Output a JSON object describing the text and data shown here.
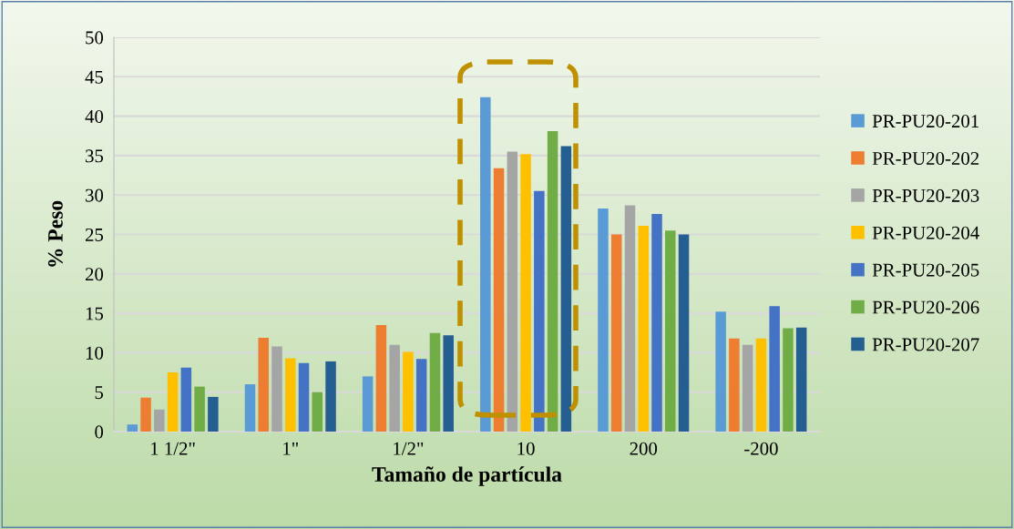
{
  "chart_data": {
    "type": "bar",
    "xlabel": "Tamaño de partícula",
    "ylabel": "% Peso",
    "categories": [
      "1 1/2\"",
      "1\"",
      "1/2\"",
      "10",
      "200",
      "-200"
    ],
    "series": [
      {
        "name": "PR-PU20-201",
        "color": "#5b9bd5",
        "values": [
          0.9,
          6.0,
          7.0,
          42.4,
          28.3,
          15.2
        ]
      },
      {
        "name": "PR-PU20-202",
        "color": "#ed7d31",
        "values": [
          4.3,
          11.9,
          13.5,
          33.4,
          25.0,
          11.8
        ]
      },
      {
        "name": "PR-PU20-203",
        "color": "#a5a5a5",
        "values": [
          2.8,
          10.8,
          11.0,
          35.5,
          28.7,
          11.0
        ]
      },
      {
        "name": "PR-PU20-204",
        "color": "#ffc000",
        "values": [
          7.5,
          9.3,
          10.1,
          35.2,
          26.1,
          11.8
        ]
      },
      {
        "name": "PR-PU20-205",
        "color": "#4472c4",
        "values": [
          8.1,
          8.7,
          9.2,
          30.5,
          27.6,
          15.9
        ]
      },
      {
        "name": "PR-PU20-206",
        "color": "#70ad47",
        "values": [
          5.7,
          5.0,
          12.5,
          38.1,
          25.5,
          13.1
        ]
      },
      {
        "name": "PR-PU20-207",
        "color": "#255e91",
        "values": [
          4.4,
          8.9,
          12.2,
          36.2,
          25.0,
          13.2
        ]
      }
    ],
    "ylim": [
      0,
      50
    ],
    "yticks": [
      0,
      5,
      10,
      15,
      20,
      25,
      30,
      35,
      40,
      45,
      50
    ],
    "grid": "y",
    "legend": "right"
  }
}
